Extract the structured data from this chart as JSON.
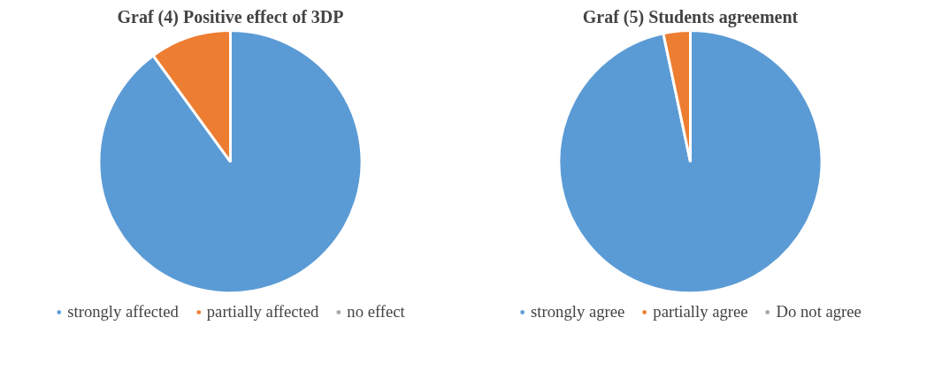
{
  "chart_data": [
    {
      "type": "pie",
      "title": "Graf (4) Positive effect of 3DP",
      "categories": [
        "strongly affected",
        "partially affected",
        "no effect"
      ],
      "values": [
        90,
        10,
        0
      ],
      "colors": [
        "#5b9bd5",
        "#ed7d31",
        "#a5a5a5"
      ],
      "legend": "bottom"
    },
    {
      "type": "pie",
      "title": "Graf (5) Students agreement",
      "categories": [
        "strongly agree",
        "partially agree",
        "Do not agree"
      ],
      "values": [
        96.7,
        3.3,
        0
      ],
      "colors": [
        "#5b9bd5",
        "#ed7d31",
        "#a5a5a5"
      ],
      "legend": "bottom"
    }
  ]
}
